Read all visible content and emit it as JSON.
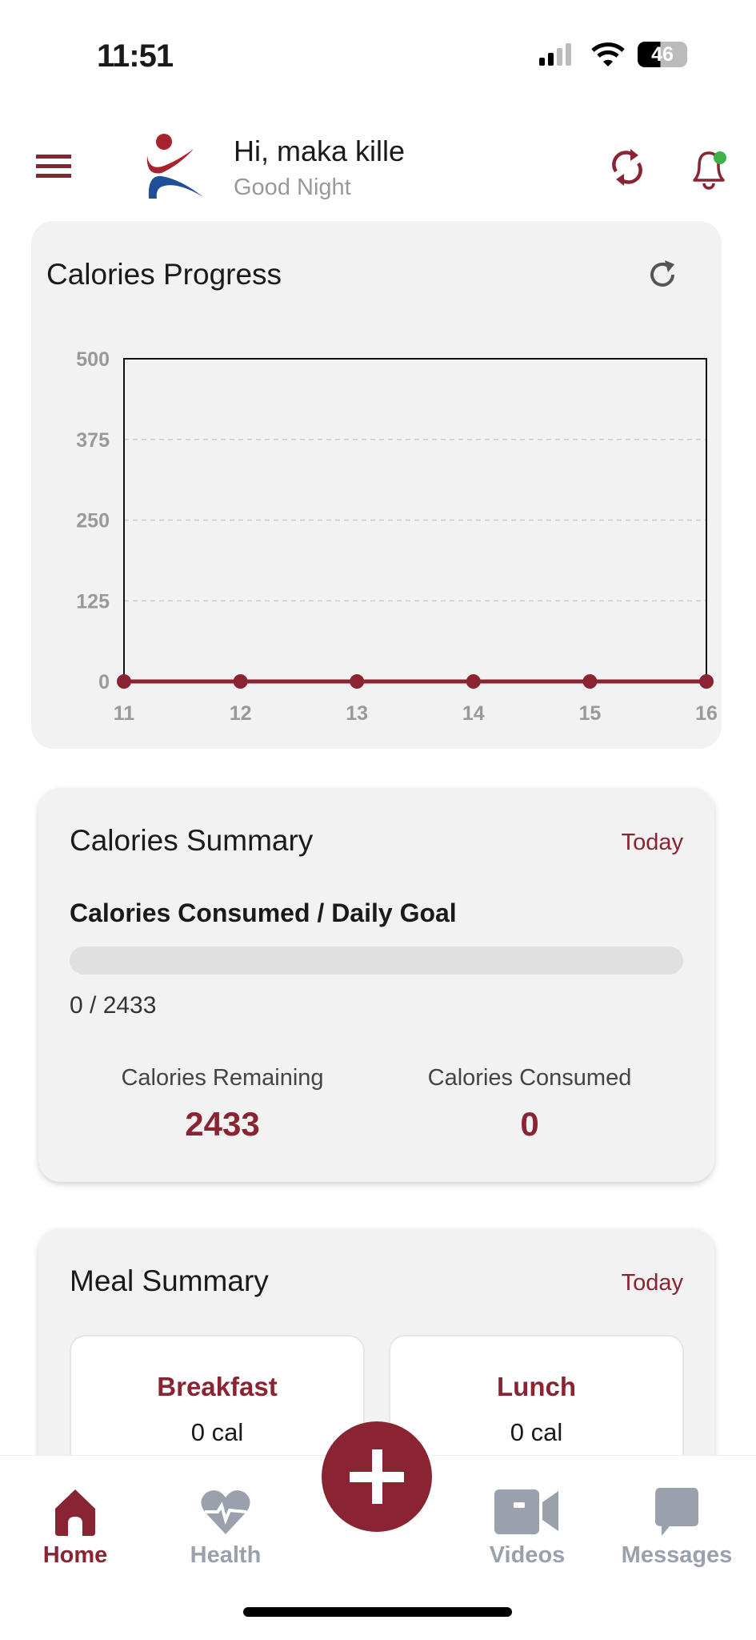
{
  "status_bar": {
    "time": "11:51",
    "battery": "46"
  },
  "header": {
    "greeting": "Hi, maka kille",
    "subtitle": "Good Night"
  },
  "progress_card": {
    "title": "Calories Progress"
  },
  "chart_data": {
    "type": "line",
    "title": "Calories Progress",
    "x": [
      11,
      12,
      13,
      14,
      15,
      16
    ],
    "series": [
      {
        "name": "Calories",
        "values": [
          0,
          0,
          0,
          0,
          0,
          0
        ],
        "color": "#8a2432"
      }
    ],
    "yticks": [
      0,
      125,
      250,
      375,
      500
    ],
    "ylim": [
      0,
      500
    ],
    "xlim": [
      11,
      16
    ],
    "grid": true,
    "xlabel": "",
    "ylabel": ""
  },
  "summary_card": {
    "title": "Calories Summary",
    "period": "Today",
    "subtitle": "Calories Consumed / Daily Goal",
    "progress_fraction": 0,
    "progress_text": "0 / 2433",
    "remaining_label": "Calories Remaining",
    "remaining_value": "2433",
    "consumed_label": "Calories Consumed",
    "consumed_value": "0"
  },
  "meal_card": {
    "title": "Meal Summary",
    "period": "Today",
    "meals": [
      {
        "name": "Breakfast",
        "cal": "0 cal"
      },
      {
        "name": "Lunch",
        "cal": "0 cal"
      }
    ]
  },
  "nav": {
    "items": [
      {
        "label": "Home"
      },
      {
        "label": "Health"
      },
      {
        "label": "Videos"
      },
      {
        "label": "Messages"
      }
    ]
  },
  "colors": {
    "accent": "#8a2432",
    "inactive": "#9aa1ad",
    "card": "#f2f2f2"
  }
}
